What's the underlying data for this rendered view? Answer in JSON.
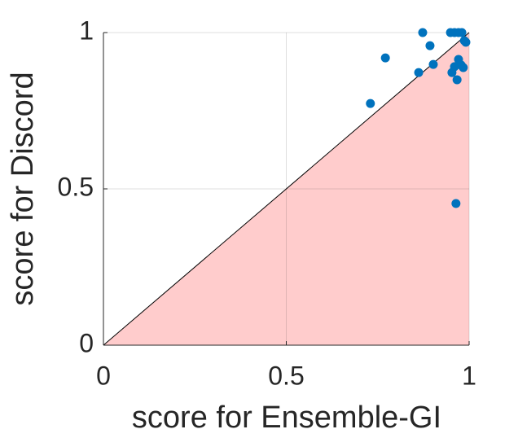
{
  "chart_data": {
    "type": "scatter",
    "x": [
      0.73,
      0.771,
      0.862,
      0.873,
      0.893,
      0.902,
      0.949,
      0.96,
      0.971,
      0.98,
      0.953,
      0.96,
      0.967,
      0.971,
      0.978,
      0.987,
      0.991,
      0.964,
      0.984
    ],
    "y": [
      0.773,
      0.919,
      0.872,
      1.0,
      0.958,
      0.898,
      1.0,
      1.0,
      1.0,
      1.0,
      0.872,
      0.891,
      0.849,
      0.914,
      0.896,
      0.974,
      0.969,
      0.453,
      0.888
    ],
    "color": "#0072bd",
    "shade_color": "#ffcccc",
    "xlim": [
      0,
      1
    ],
    "ylim": [
      0,
      1
    ],
    "xticks": [
      0,
      0.5,
      1
    ],
    "yticks": [
      0,
      0.5,
      1
    ],
    "grid": true,
    "xlabel": "score for Ensemble-GI",
    "ylabel": "score for Discord"
  }
}
